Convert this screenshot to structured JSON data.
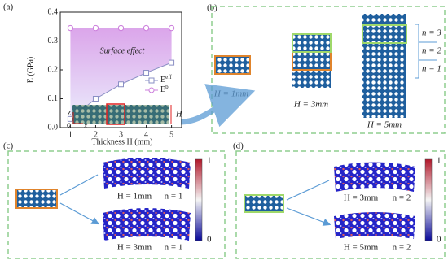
{
  "chart_data": {
    "type": "line",
    "panel_label": "(a)",
    "xlabel": "Thickness H (mm)",
    "ylabel": "E (GPa)",
    "annotation": "Surface effect",
    "x": [
      1,
      2,
      3,
      4,
      5
    ],
    "series": [
      {
        "name": "Eeff",
        "color": "#8a8fc4",
        "marker": "square",
        "values": [
          0.03,
          0.1,
          0.15,
          0.19,
          0.225
        ]
      },
      {
        "name": "Eb",
        "color": "#cc7fdc",
        "marker": "circle",
        "values": [
          0.345,
          0.345,
          0.345,
          0.345,
          0.345
        ]
      }
    ],
    "xlim": [
      0.6,
      5.4
    ],
    "ylim": [
      0,
      0.4
    ],
    "xticks": [
      1,
      2,
      3,
      4,
      5
    ],
    "yticks": [
      {
        "value": 0,
        "label": "0.0"
      },
      0.1,
      0.2,
      0.3,
      0.4
    ],
    "fill_between": true,
    "inset_labels": {
      "height": "H",
      "z": "z",
      "origin": "o",
      "x": "x"
    }
  },
  "panel_b": {
    "label": "(b)",
    "captions": [
      "H = 1mm",
      "H = 3mm",
      "H = 5mm"
    ],
    "layers": [
      "n = 3",
      "n = 2",
      "n = 1"
    ]
  },
  "panel_c": {
    "label": "(c)",
    "captions": [
      [
        "H = 1mm",
        "n = 1"
      ],
      [
        "H = 3mm",
        "n = 1"
      ]
    ],
    "colorbar": [
      "1",
      "0"
    ]
  },
  "panel_d": {
    "label": "(d)",
    "captions": [
      [
        "H = 3mm",
        "n = 2"
      ],
      [
        "H = 5mm",
        "n = 2"
      ]
    ],
    "colorbar": [
      "1",
      "0"
    ]
  }
}
